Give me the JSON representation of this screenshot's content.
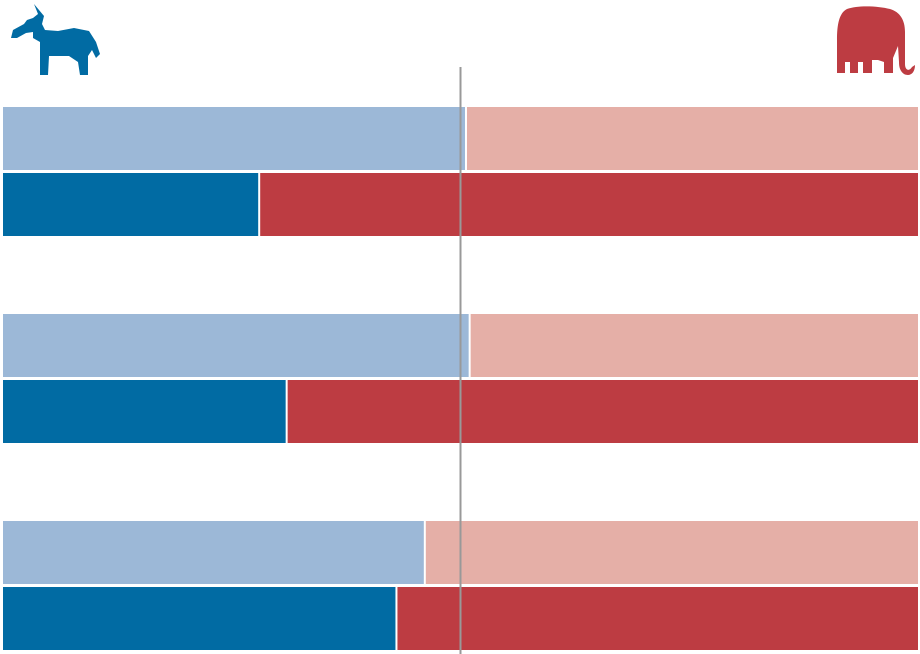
{
  "colors": {
    "dem": "#016ba3",
    "dem_light": "#9cb8d7",
    "rep": "#bd3c42",
    "rep_light": "#e5afa7",
    "midline": "#999999"
  },
  "icons": {
    "left": "donkey-icon",
    "right": "elephant-icon"
  },
  "chart_data": {
    "type": "bar",
    "orientation": "horizontal",
    "stacked": true,
    "normalized": true,
    "xlim": [
      0,
      100
    ],
    "reference_line": 50,
    "groups": [
      {
        "rows": [
          {
            "style": "light",
            "dem": 50.6,
            "rep": 49.4
          },
          {
            "style": "dark",
            "dem": 28.0,
            "rep": 72.0
          }
        ]
      },
      {
        "rows": [
          {
            "style": "light",
            "dem": 51.0,
            "rep": 49.0
          },
          {
            "style": "dark",
            "dem": 31.0,
            "rep": 69.0
          }
        ]
      },
      {
        "rows": [
          {
            "style": "light",
            "dem": 46.1,
            "rep": 53.9
          },
          {
            "style": "dark",
            "dem": 43.0,
            "rep": 57.0
          }
        ]
      }
    ]
  }
}
